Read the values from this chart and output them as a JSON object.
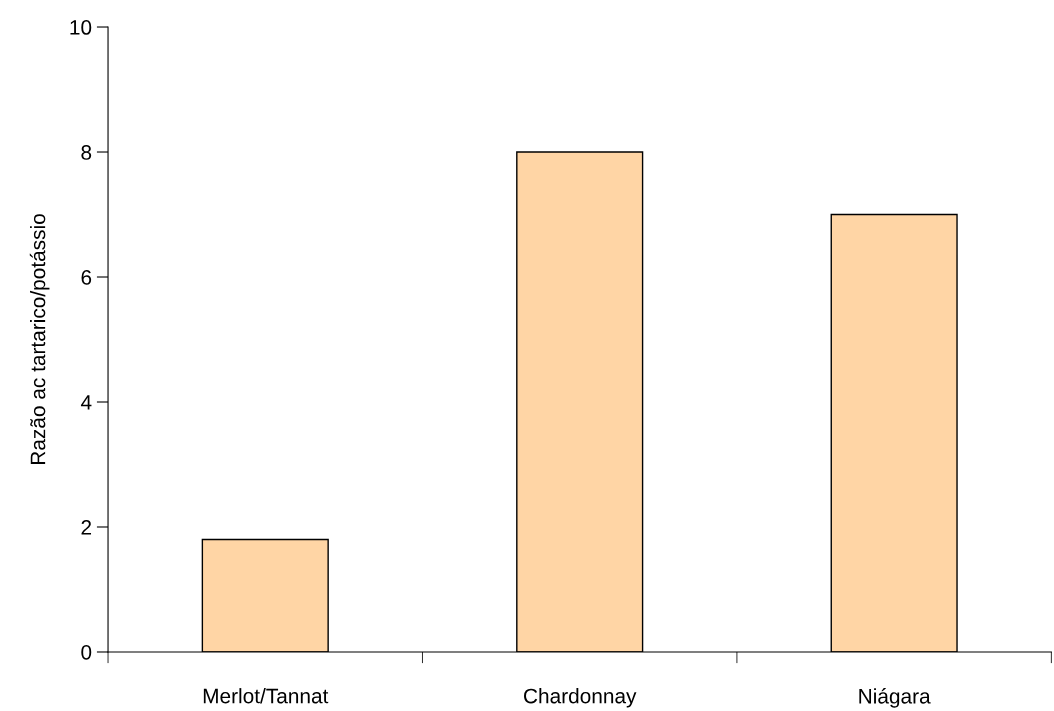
{
  "chart_data": {
    "type": "bar",
    "ylabel": "Razão ac tartarico/potássio",
    "categories": [
      "Merlot/Tannat",
      "Chardonnay",
      "Niágara"
    ],
    "values": [
      1.8,
      8.0,
      7.0
    ],
    "color": "#ffd5a5",
    "ylim": [
      0,
      10
    ],
    "yticks": [
      0,
      2,
      4,
      6,
      8,
      10
    ],
    "grid": false,
    "legend": false
  }
}
